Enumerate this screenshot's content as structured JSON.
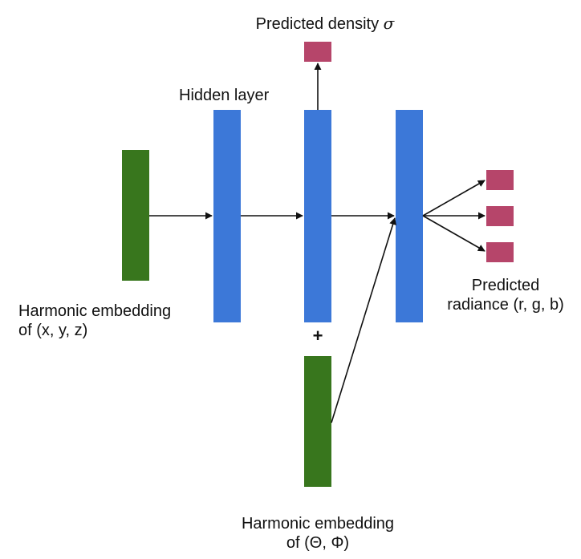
{
  "labels": {
    "density": "Predicted density",
    "sigma": "σ",
    "hidden": "Hidden layer",
    "xyz_line1": "Harmonic embedding",
    "xyz_line2": "of (x, y, z)",
    "plus": "+",
    "dir_line1": "Harmonic embedding",
    "dir_line2": "of (Θ, Φ)",
    "radiance_line1": "Predicted",
    "radiance_line2": "radiance (r, g, b)"
  },
  "colors": {
    "embedding": "#38761d",
    "hidden": "#3c78d8",
    "output": "#b6456a",
    "arrow": "#111111"
  }
}
